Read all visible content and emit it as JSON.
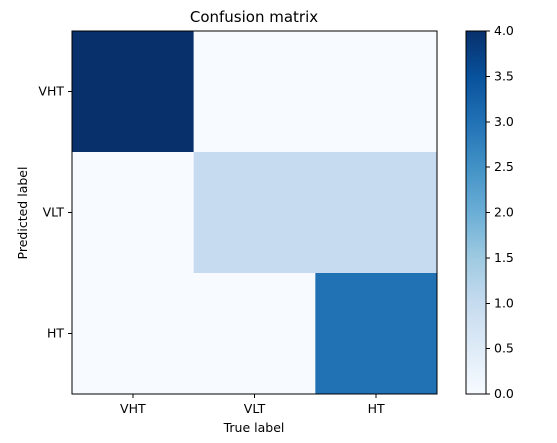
{
  "chart_data": {
    "type": "heatmap",
    "title": "Confusion matrix",
    "xlabel": "True label",
    "ylabel": "Predicted label",
    "x_categories": [
      "VHT",
      "VLT",
      "HT"
    ],
    "y_categories": [
      "VHT",
      "VLT",
      "HT"
    ],
    "values": [
      [
        4,
        0,
        0
      ],
      [
        0,
        1,
        1
      ],
      [
        0,
        0,
        3
      ]
    ],
    "colorbar": {
      "min": 0,
      "max": 4,
      "ticks": [
        "0.0",
        "0.5",
        "1.0",
        "1.5",
        "2.0",
        "2.5",
        "3.0",
        "3.5",
        "4.0"
      ],
      "colormap": "Blues"
    },
    "grid": false
  }
}
